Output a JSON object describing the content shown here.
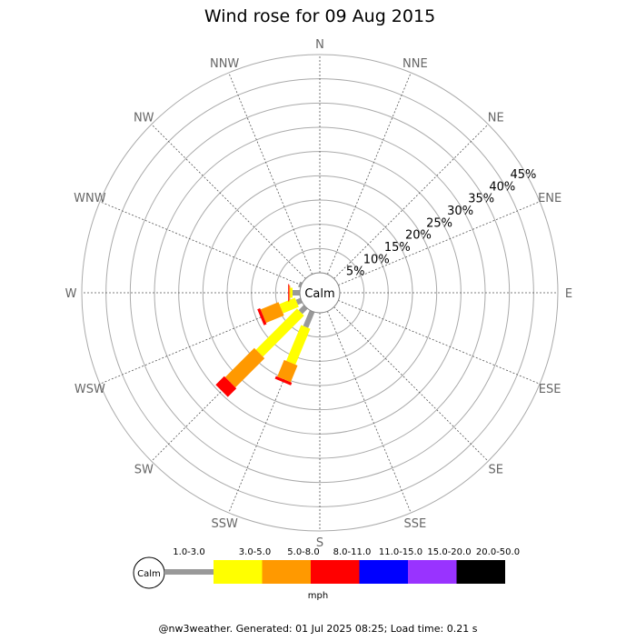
{
  "chart_data": {
    "type": "wind-rose",
    "title": "Wind rose for 09 Aug 2015",
    "directions": [
      "N",
      "NNE",
      "NE",
      "ENE",
      "E",
      "ESE",
      "SE",
      "SSE",
      "S",
      "SSW",
      "SW",
      "WSW",
      "W",
      "WNW",
      "NW",
      "NNW"
    ],
    "radial_ticks": [
      "5%",
      "10%",
      "15%",
      "20%",
      "25%",
      "30%",
      "35%",
      "40%",
      "45%"
    ],
    "radial_max": 45,
    "center_label": "Calm",
    "bins": [
      {
        "label": "1.0-3.0",
        "color": "#999999"
      },
      {
        "label": "3.0-5.0",
        "color": "#ffff00"
      },
      {
        "label": "5.0-8.0",
        "color": "#ff9900"
      },
      {
        "label": "8.0-11.0",
        "color": "#ff0000"
      },
      {
        "label": "11.0-15.0",
        "color": "#0000ff"
      },
      {
        "label": "15.0-20.0",
        "color": "#9933ff"
      },
      {
        "label": "20.0-50.0",
        "color": "#000000"
      }
    ],
    "unit": "mph",
    "series": [
      {
        "direction": "S",
        "values": [
          0,
          0,
          0,
          0,
          0,
          0,
          0
        ]
      },
      {
        "direction": "SSW",
        "values": [
          3.5,
          8.0,
          3.7,
          0.6,
          0,
          0,
          0
        ]
      },
      {
        "direction": "SW",
        "values": [
          1.5,
          12.0,
          8.5,
          2.5,
          0,
          0,
          0
        ]
      },
      {
        "direction": "WSW",
        "values": [
          1.0,
          3.5,
          4.0,
          0.6,
          0,
          0,
          0
        ]
      },
      {
        "direction": "W",
        "values": [
          1.5,
          0.5,
          0.2,
          0.2,
          0,
          0,
          0
        ]
      },
      {
        "direction": "WNW",
        "values": [
          0.5,
          0,
          0,
          0,
          0,
          0,
          0
        ]
      }
    ]
  },
  "footer": "@nw3weather. Generated: 01 Jul 2025 08:25; Load time: 0.21 s"
}
